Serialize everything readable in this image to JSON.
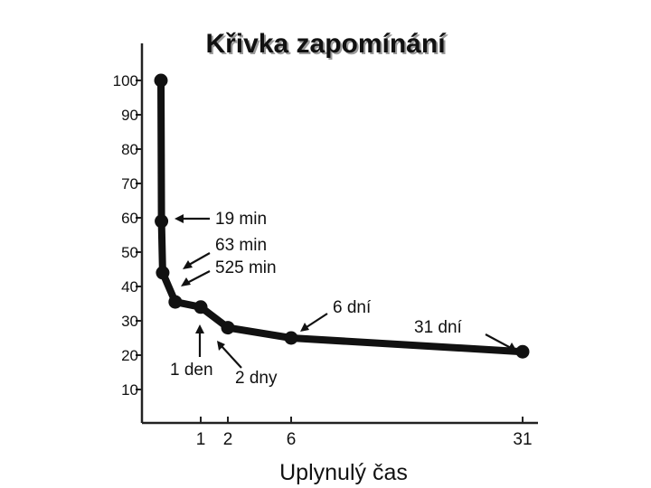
{
  "chart_data": {
    "type": "line",
    "title": "Křivka zapomínání",
    "xlabel": "Uplynulý čas",
    "ylabel": "",
    "y_ticks": [
      "100",
      "90",
      "80",
      "70",
      "60",
      "50",
      "40",
      "30",
      "20",
      "10"
    ],
    "x_ticks": [
      "1",
      "2",
      "6",
      "31"
    ],
    "points": [
      {
        "x": 0,
        "y": 100
      },
      {
        "x": 0.013,
        "y": 59
      },
      {
        "x": 0.044,
        "y": 44
      },
      {
        "x": 0.36,
        "y": 35.5
      },
      {
        "x": 1,
        "y": 34
      },
      {
        "x": 2,
        "y": 28
      },
      {
        "x": 6,
        "y": 25
      },
      {
        "x": 31,
        "y": 21
      }
    ],
    "annotations": [
      "19 min",
      "63 min",
      "525 min",
      "1 den",
      "2 dny",
      "6 dní",
      "31 dní"
    ],
    "ylim": [
      0,
      110
    ],
    "grid": false,
    "legend": "none"
  }
}
